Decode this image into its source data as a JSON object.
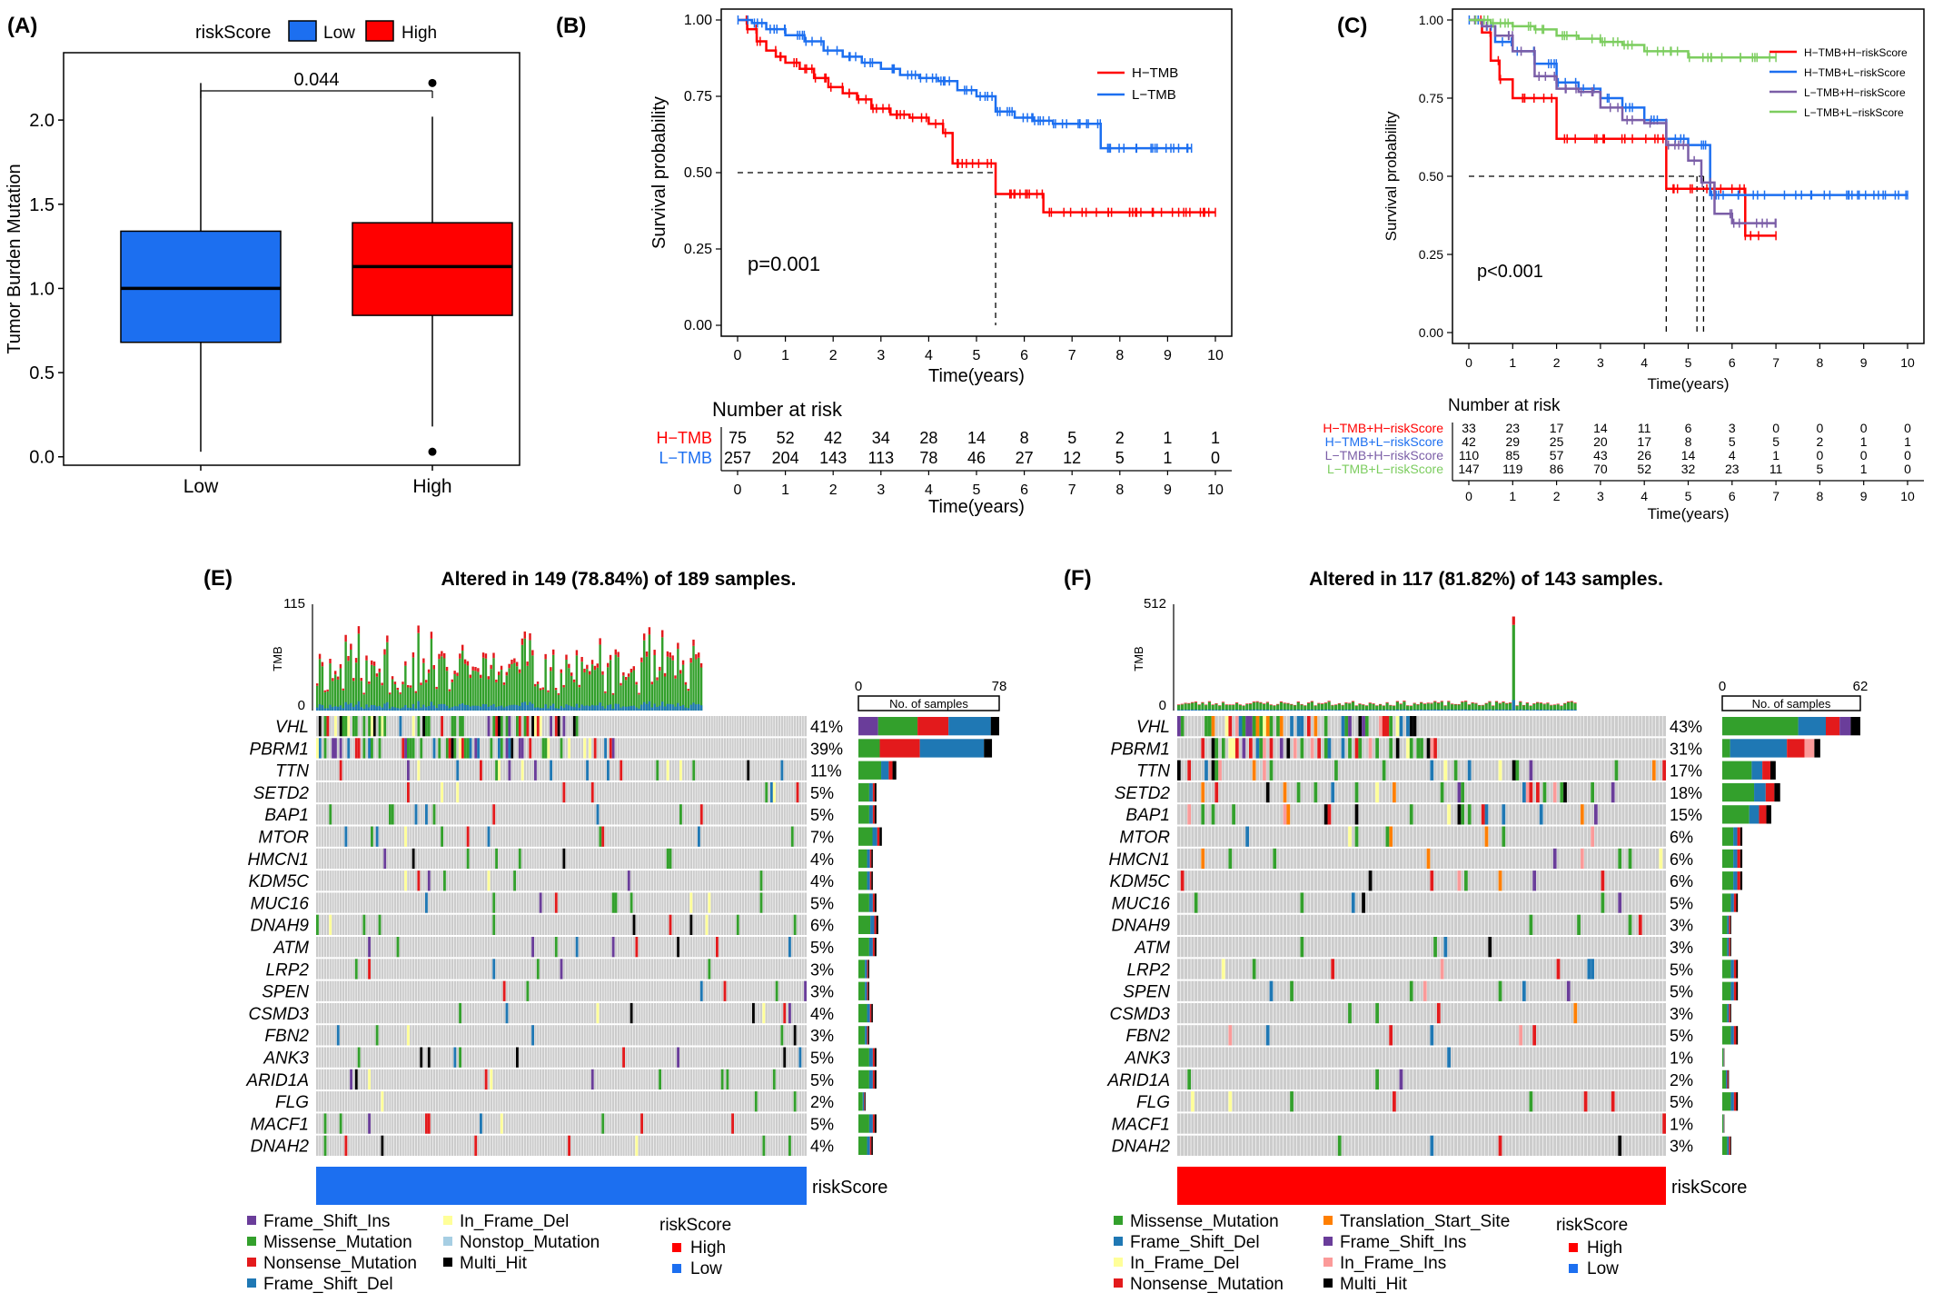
{
  "colors": {
    "low": "#1c6ff0",
    "high": "#ff0000",
    "h_tmb": "#ff0000",
    "l_tmb": "#1c6ff0",
    "hh": "#ff0000",
    "hl": "#1c6ff0",
    "lh": "#7b5ea7",
    "ll": "#7ccd5f",
    "missense": "#33a02c",
    "nonsense": "#e31a1c",
    "frame_shift_del": "#1f78b4",
    "frame_shift_ins": "#6a3d9a",
    "in_frame_del": "#ffff99",
    "in_frame_ins": "#fb9a99",
    "nonstop": "#a6cee3",
    "translation_start": "#ff7f00",
    "multi_hit": "#000000",
    "bg_cell": "#cccccc",
    "axis": "#333333"
  },
  "panels": {
    "A": {
      "label": "(A)"
    },
    "B": {
      "label": "(B)"
    },
    "C": {
      "label": "(C)"
    },
    "E": {
      "label": "(E)"
    },
    "F": {
      "label": "(F)"
    }
  },
  "chart_data": [
    {
      "panel": "A",
      "type": "box",
      "legend_title": "riskScore",
      "legend": [
        "Low",
        "High"
      ],
      "ylabel": "Tumor Burden Mutation",
      "categories": [
        "Low",
        "High"
      ],
      "ylim": [
        -0.05,
        2.4
      ],
      "yticks": [
        "0.0",
        "0.5",
        "1.0",
        "1.5",
        "2.0"
      ],
      "ytick_values": [
        0,
        0.5,
        1.0,
        1.5,
        2.0
      ],
      "boxes": [
        {
          "name": "Low",
          "min": 0.03,
          "q1": 0.68,
          "median": 1.0,
          "q3": 1.34,
          "max": 2.22,
          "outliers": []
        },
        {
          "name": "High",
          "min": 0.18,
          "q1": 0.84,
          "median": 1.13,
          "q3": 1.39,
          "max": 2.02,
          "outliers": [
            2.22,
            0.03
          ]
        }
      ],
      "annotation": "0.044"
    },
    {
      "panel": "B",
      "type": "line",
      "ylabel": "Survival probability",
      "xlabel": "Time(years)",
      "xlim": [
        0,
        10
      ],
      "ylim": [
        0,
        1
      ],
      "xticks": [
        "0",
        "1",
        "2",
        "3",
        "4",
        "5",
        "6",
        "7",
        "8",
        "9",
        "10"
      ],
      "yticks": [
        "0.00",
        "0.25",
        "0.50",
        "0.75",
        "1.00"
      ],
      "pvalue": "p=0.001",
      "median_lines": [
        5.4
      ],
      "series": [
        {
          "name": "H−TMB",
          "x": [
            0,
            0.2,
            0.4,
            0.6,
            0.8,
            1.0,
            1.3,
            1.6,
            1.9,
            2.2,
            2.5,
            2.8,
            3.2,
            3.6,
            4.0,
            4.3,
            4.5,
            4.7,
            5.2,
            5.4,
            6.2,
            6.4,
            7.0,
            8.0,
            9.0,
            10.0
          ],
          "y": [
            1.0,
            0.97,
            0.93,
            0.9,
            0.88,
            0.86,
            0.84,
            0.81,
            0.78,
            0.76,
            0.74,
            0.71,
            0.69,
            0.68,
            0.66,
            0.63,
            0.53,
            0.53,
            0.53,
            0.43,
            0.43,
            0.37,
            0.37,
            0.37,
            0.37,
            0.37
          ]
        },
        {
          "name": "L−TMB",
          "x": [
            0,
            0.3,
            0.6,
            1.0,
            1.4,
            1.8,
            2.2,
            2.6,
            3.0,
            3.4,
            3.8,
            4.2,
            4.6,
            5.0,
            5.4,
            5.8,
            6.2,
            6.6,
            7.0,
            7.6,
            8.0,
            8.5,
            9.0,
            9.5
          ],
          "y": [
            1.0,
            0.99,
            0.97,
            0.95,
            0.93,
            0.9,
            0.88,
            0.86,
            0.84,
            0.82,
            0.81,
            0.8,
            0.77,
            0.75,
            0.7,
            0.68,
            0.67,
            0.66,
            0.66,
            0.58,
            0.58,
            0.58,
            0.58,
            0.58
          ]
        }
      ],
      "risk_table": {
        "title": "Number at risk",
        "rows": [
          {
            "name": "H−TMB",
            "values": [
              "75",
              "52",
              "42",
              "34",
              "28",
              "14",
              "8",
              "5",
              "2",
              "1",
              "1"
            ]
          },
          {
            "name": "L−TMB",
            "values": [
              "257",
              "204",
              "143",
              "113",
              "78",
              "46",
              "27",
              "12",
              "5",
              "1",
              "0"
            ]
          }
        ],
        "xlabel": "Time(years)"
      }
    },
    {
      "panel": "C",
      "type": "line",
      "ylabel": "Survival probability",
      "xlabel": "Time(years)",
      "xlim": [
        0,
        10
      ],
      "ylim": [
        0,
        1
      ],
      "xticks": [
        "0",
        "1",
        "2",
        "3",
        "4",
        "5",
        "6",
        "7",
        "8",
        "9",
        "10"
      ],
      "yticks": [
        "0.00",
        "0.25",
        "0.50",
        "0.75",
        "1.00"
      ],
      "pvalue": "p<0.001",
      "median_lines": [
        4.5,
        5.2,
        5.35
      ],
      "series": [
        {
          "name": "H−TMB+H−riskScore",
          "x": [
            0,
            0.3,
            0.5,
            0.7,
            1.0,
            1.5,
            2.0,
            2.5,
            3.0,
            3.5,
            4.0,
            4.4,
            4.5,
            5.0,
            5.3,
            5.5,
            6.0,
            6.3,
            7.0
          ],
          "y": [
            1.0,
            0.96,
            0.87,
            0.81,
            0.75,
            0.75,
            0.62,
            0.62,
            0.62,
            0.62,
            0.62,
            0.62,
            0.46,
            0.46,
            0.46,
            0.46,
            0.46,
            0.31,
            0.31
          ]
        },
        {
          "name": "H−TMB+L−riskScore",
          "x": [
            0,
            0.3,
            0.6,
            1.0,
            1.5,
            2.0,
            2.5,
            3.0,
            3.5,
            4.0,
            4.5,
            5.0,
            5.5,
            6.0,
            7.0,
            8.0,
            9.0,
            10.0
          ],
          "y": [
            1.0,
            0.98,
            0.93,
            0.9,
            0.86,
            0.8,
            0.78,
            0.75,
            0.72,
            0.68,
            0.62,
            0.6,
            0.44,
            0.44,
            0.44,
            0.44,
            0.44,
            0.44
          ]
        },
        {
          "name": "L−TMB+H−riskScore",
          "x": [
            0,
            0.3,
            0.6,
            1.0,
            1.5,
            2.0,
            2.5,
            3.0,
            3.5,
            4.0,
            4.5,
            5.0,
            5.3,
            5.6,
            6.0,
            7.0
          ],
          "y": [
            1.0,
            0.98,
            0.95,
            0.9,
            0.82,
            0.78,
            0.77,
            0.72,
            0.68,
            0.67,
            0.6,
            0.55,
            0.48,
            0.38,
            0.35,
            0.35
          ]
        },
        {
          "name": "L−TMB+L−riskScore",
          "x": [
            0,
            0.5,
            1.0,
            1.5,
            2.0,
            2.5,
            3.0,
            3.5,
            4.0,
            4.5,
            5.0,
            5.5,
            6.0,
            6.5,
            7.0
          ],
          "y": [
            1.0,
            0.99,
            0.98,
            0.97,
            0.95,
            0.94,
            0.93,
            0.92,
            0.9,
            0.9,
            0.88,
            0.88,
            0.88,
            0.88,
            0.88
          ]
        }
      ],
      "risk_table": {
        "title": "Number at risk",
        "rows": [
          {
            "name": "H−TMB+H−riskScore",
            "values": [
              "33",
              "23",
              "17",
              "14",
              "11",
              "6",
              "3",
              "0",
              "0",
              "0",
              "0"
            ]
          },
          {
            "name": "H−TMB+L−riskScore",
            "values": [
              "42",
              "29",
              "25",
              "20",
              "17",
              "8",
              "5",
              "5",
              "2",
              "1",
              "1"
            ]
          },
          {
            "name": "L−TMB+H−riskScore",
            "values": [
              "110",
              "85",
              "57",
              "43",
              "26",
              "14",
              "4",
              "1",
              "0",
              "0",
              "0"
            ]
          },
          {
            "name": "L−TMB+L−riskScore",
            "values": [
              "147",
              "119",
              "86",
              "70",
              "52",
              "32",
              "23",
              "11",
              "5",
              "1",
              "0"
            ]
          }
        ],
        "xlabel": "Time(years)"
      }
    },
    {
      "panel": "E",
      "type": "heatmap",
      "title": "Altered in 149 (78.84%) of 189 samples.",
      "tmb_label": "TMB",
      "tmb_max": "115",
      "bar_axis": {
        "min": "0",
        "max": "78",
        "label": "No. of samples"
      },
      "risk_label": "riskScore",
      "risk_color_key": "low",
      "genes": [
        "VHL",
        "PBRM1",
        "TTN",
        "SETD2",
        "BAP1",
        "MTOR",
        "HMCN1",
        "KDM5C",
        "MUC16",
        "DNAH9",
        "ATM",
        "LRP2",
        "SPEN",
        "CSMD3",
        "FBN2",
        "ANK3",
        "ARID1A",
        "FLG",
        "MACF1",
        "DNAH2"
      ],
      "percents": [
        "41%",
        "39%",
        "11%",
        "5%",
        "5%",
        "7%",
        "4%",
        "4%",
        "5%",
        "6%",
        "5%",
        "3%",
        "3%",
        "4%",
        "3%",
        "5%",
        "5%",
        "2%",
        "5%",
        "4%"
      ],
      "counts": [
        78,
        74,
        21,
        10,
        10,
        13,
        8,
        8,
        10,
        11,
        10,
        6,
        6,
        8,
        6,
        10,
        10,
        4,
        10,
        8
      ],
      "legend_items": [
        "Frame_Shift_Ins",
        "Missense_Mutation",
        "Nonsense_Mutation",
        "Frame_Shift_Del",
        "In_Frame_Del",
        "Nonstop_Mutation",
        "Multi_Hit"
      ],
      "legend_title": "riskScore",
      "legend_risk": [
        "High",
        "Low"
      ]
    },
    {
      "panel": "F",
      "type": "heatmap",
      "title": "Altered in 117 (81.82%) of 143 samples.",
      "tmb_label": "TMB",
      "tmb_max": "512",
      "bar_axis": {
        "min": "0",
        "max": "62",
        "label": "No. of samples"
      },
      "risk_label": "riskScore",
      "risk_color_key": "high",
      "genes": [
        "VHL",
        "PBRM1",
        "TTN",
        "SETD2",
        "BAP1",
        "MTOR",
        "HMCN1",
        "KDM5C",
        "MUC16",
        "DNAH9",
        "ATM",
        "LRP2",
        "SPEN",
        "CSMD3",
        "FBN2",
        "ANK3",
        "ARID1A",
        "FLG",
        "MACF1",
        "DNAH2"
      ],
      "percents": [
        "43%",
        "31%",
        "17%",
        "18%",
        "15%",
        "6%",
        "6%",
        "6%",
        "5%",
        "3%",
        "3%",
        "5%",
        "5%",
        "3%",
        "5%",
        "1%",
        "2%",
        "5%",
        "1%",
        "3%"
      ],
      "counts": [
        62,
        44,
        24,
        26,
        22,
        9,
        9,
        9,
        7,
        4,
        4,
        7,
        7,
        4,
        7,
        1,
        3,
        7,
        1,
        4
      ],
      "legend_items": [
        "Missense_Mutation",
        "Frame_Shift_Del",
        "In_Frame_Del",
        "Nonsense_Mutation",
        "Translation_Start_Site",
        "Frame_Shift_Ins",
        "In_Frame_Ins",
        "Multi_Hit"
      ],
      "legend_title": "riskScore",
      "legend_risk": [
        "High",
        "Low"
      ]
    }
  ]
}
